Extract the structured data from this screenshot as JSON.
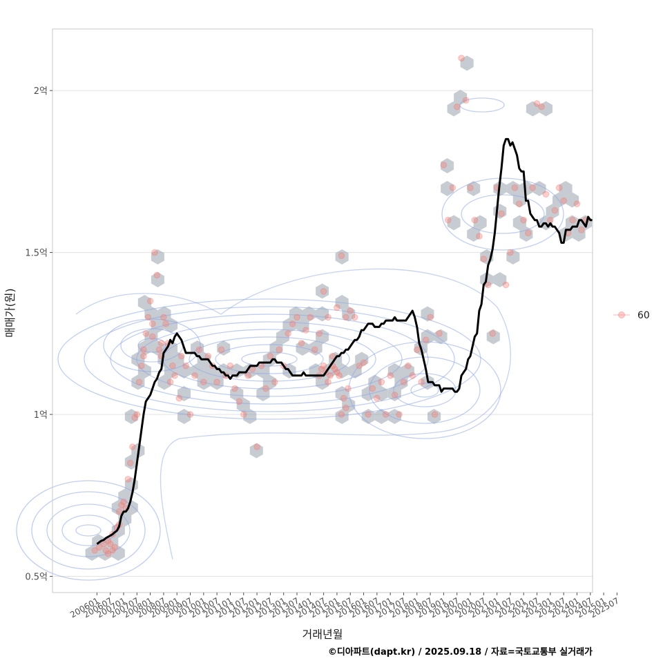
{
  "chart_data": {
    "type": "scatter",
    "xlabel": "거래년월",
    "ylabel": "매매가(원)",
    "caption": "©디아파트(dapt.kr) / 2025.09.18 / 자료=국토교통부 실거래가",
    "legend": {
      "label": "60",
      "placement": "right"
    },
    "y_range": [
      0.45,
      2.19
    ],
    "y_ticks": [
      {
        "value": 0.5,
        "label": "0.5억"
      },
      {
        "value": 1.0,
        "label": "1억"
      },
      {
        "value": 1.5,
        "label": "1.5억"
      },
      {
        "value": 2.0,
        "label": "2억"
      }
    ],
    "x_range": [
      -20,
      223
    ],
    "x_ticks": [
      "200601",
      "200607",
      "200701",
      "200707",
      "200801",
      "200807",
      "200901",
      "200907",
      "201001",
      "201007",
      "201101",
      "201107",
      "201201",
      "201207",
      "201301",
      "201307",
      "201401",
      "201407",
      "201501",
      "201507",
      "201601",
      "201607",
      "201701",
      "201707",
      "201801",
      "201807",
      "201901",
      "201907",
      "202001",
      "202007",
      "202101",
      "202107",
      "202201",
      "202207",
      "202301",
      "202307",
      "202401",
      "202407",
      "202501",
      "202507"
    ],
    "trend_line": {
      "name": "이동평균",
      "x_start": 0,
      "step": 1,
      "y": [
        0.6,
        0.605,
        0.61,
        0.612,
        0.618,
        0.622,
        0.626,
        0.63,
        0.636,
        0.641,
        0.654,
        0.687,
        0.7,
        0.7,
        0.71,
        0.73,
        0.76,
        0.8,
        0.85,
        0.9,
        0.95,
        1.0,
        1.04,
        1.05,
        1.06,
        1.08,
        1.1,
        1.11,
        1.13,
        1.14,
        1.19,
        1.2,
        1.21,
        1.23,
        1.22,
        1.24,
        1.25,
        1.24,
        1.23,
        1.21,
        1.19,
        1.19,
        1.19,
        1.19,
        1.19,
        1.18,
        1.18,
        1.17,
        1.17,
        1.17,
        1.17,
        1.16,
        1.15,
        1.15,
        1.14,
        1.14,
        1.13,
        1.13,
        1.12,
        1.12,
        1.11,
        1.12,
        1.12,
        1.12,
        1.13,
        1.13,
        1.13,
        1.13,
        1.14,
        1.15,
        1.15,
        1.15,
        1.15,
        1.16,
        1.16,
        1.16,
        1.16,
        1.16,
        1.16,
        1.17,
        1.17,
        1.16,
        1.16,
        1.16,
        1.15,
        1.14,
        1.14,
        1.13,
        1.12,
        1.12,
        1.12,
        1.12,
        1.12,
        1.13,
        1.12,
        1.12,
        1.12,
        1.12,
        1.12,
        1.12,
        1.12,
        1.12,
        1.12,
        1.13,
        1.14,
        1.15,
        1.16,
        1.17,
        1.18,
        1.18,
        1.19,
        1.19,
        1.2,
        1.2,
        1.21,
        1.22,
        1.23,
        1.23,
        1.24,
        1.26,
        1.26,
        1.27,
        1.28,
        1.28,
        1.28,
        1.27,
        1.27,
        1.27,
        1.28,
        1.28,
        1.29,
        1.29,
        1.29,
        1.29,
        1.3,
        1.29,
        1.29,
        1.29,
        1.29,
        1.29,
        1.3,
        1.31,
        1.32,
        1.3,
        1.27,
        1.22,
        1.2,
        1.17,
        1.14,
        1.1,
        1.1,
        1.1,
        1.09,
        1.09,
        1.09,
        1.07,
        1.08,
        1.08,
        1.08,
        1.08,
        1.08,
        1.07,
        1.07,
        1.08,
        1.12,
        1.13,
        1.14,
        1.17,
        1.18,
        1.21,
        1.24,
        1.25,
        1.32,
        1.34,
        1.4,
        1.41,
        1.46,
        1.48,
        1.51,
        1.56,
        1.63,
        1.7,
        1.76,
        1.83,
        1.85,
        1.85,
        1.83,
        1.84,
        1.82,
        1.8,
        1.76,
        1.75,
        1.75,
        1.66,
        1.66,
        1.62,
        1.61,
        1.6,
        1.6,
        1.58,
        1.58,
        1.59,
        1.59,
        1.58,
        1.59,
        1.58,
        1.58,
        1.57,
        1.56,
        1.53,
        1.53,
        1.57,
        1.57,
        1.57,
        1.58,
        1.58,
        1.58,
        1.6,
        1.6,
        1.59,
        1.58,
        1.61,
        1.6,
        1.6
      ]
    },
    "series": [
      {
        "name": "60",
        "x_month_offsets": [
          -1,
          1,
          3,
          4,
          5,
          5,
          6,
          7,
          7,
          8,
          9,
          10,
          10,
          11,
          12,
          13,
          14,
          15,
          16,
          17,
          18,
          19,
          20,
          21,
          21,
          22,
          23,
          24,
          25,
          25,
          26,
          27,
          28,
          29,
          29,
          30,
          31,
          32,
          33,
          34,
          35,
          37,
          38,
          40,
          42,
          44,
          46,
          48,
          50,
          52,
          54,
          56,
          58,
          60,
          62,
          64,
          66,
          68,
          70,
          72,
          74,
          76,
          78,
          80,
          82,
          84,
          86,
          88,
          90,
          92,
          94,
          96,
          98,
          100,
          102,
          104,
          106,
          108,
          110,
          112,
          114,
          116,
          118,
          120,
          122,
          124,
          126,
          128,
          130,
          132,
          134,
          136,
          138,
          140,
          142,
          144,
          146,
          148,
          150,
          152,
          154,
          156,
          158,
          160,
          162,
          164,
          166,
          168,
          170,
          172,
          174,
          176,
          178,
          180,
          182,
          184,
          186,
          188,
          190,
          192,
          194,
          196,
          198,
          200,
          202,
          204,
          206,
          208,
          210,
          212,
          214,
          216,
          218,
          220,
          100,
          101,
          102,
          103,
          104,
          105,
          106,
          107,
          108,
          109,
          110,
          111,
          112,
          113
        ],
        "y_values": [
          0.58,
          0.59,
          0.6,
          0.58,
          0.57,
          0.61,
          0.6,
          0.58,
          0.63,
          0.59,
          0.65,
          0.66,
          0.7,
          0.72,
          0.73,
          0.71,
          0.8,
          0.85,
          0.9,
          0.99,
          1.0,
          1.1,
          1.15,
          1.2,
          1.18,
          1.25,
          1.3,
          1.35,
          1.28,
          1.24,
          1.5,
          1.43,
          1.2,
          1.18,
          1.22,
          1.3,
          1.28,
          1.22,
          1.1,
          1.15,
          1.12,
          1.05,
          1.18,
          1.15,
          1.0,
          1.12,
          1.2,
          1.1,
          1.18,
          1.15,
          1.1,
          1.2,
          1.12,
          1.15,
          1.08,
          1.04,
          1.0,
          1.12,
          1.14,
          0.9,
          1.15,
          1.08,
          1.18,
          1.1,
          1.2,
          1.15,
          1.25,
          1.28,
          1.3,
          1.22,
          1.26,
          1.3,
          1.2,
          1.25,
          1.38,
          1.3,
          1.18,
          1.33,
          1.49,
          1.3,
          1.32,
          1.3,
          1.15,
          1.16,
          1.0,
          1.08,
          1.05,
          1.1,
          1.0,
          1.12,
          1.06,
          1.0,
          1.1,
          1.15,
          1.12,
          1.2,
          1.1,
          1.23,
          1.3,
          1.0,
          1.25,
          1.77,
          1.6,
          1.7,
          1.95,
          2.1,
          1.97,
          1.7,
          1.6,
          1.55,
          1.48,
          1.4,
          1.25,
          1.7,
          1.62,
          1.4,
          1.5,
          1.7,
          1.65,
          1.6,
          1.56,
          1.7,
          1.96,
          1.95,
          1.68,
          1.6,
          1.63,
          1.7,
          1.66,
          1.56,
          1.6,
          1.65,
          1.57,
          1.6,
          1.12,
          1.14,
          1.15,
          1.13,
          1.1,
          1.12,
          1.15,
          1.14,
          1.13,
          1.12,
          1.0,
          1.05,
          1.02,
          1.08
        ]
      }
    ]
  }
}
